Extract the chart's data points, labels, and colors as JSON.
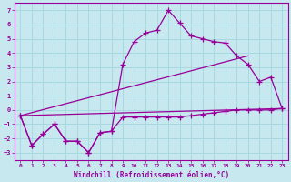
{
  "background_color": "#c6e8ee",
  "grid_color": "#a8d8e0",
  "line_color": "#990099",
  "xlabel": "Windchill (Refroidissement éolien,°C)",
  "xlim": [
    -0.5,
    23.5
  ],
  "ylim": [
    -3.5,
    7.5
  ],
  "yticks": [
    -3,
    -2,
    -1,
    0,
    1,
    2,
    3,
    4,
    5,
    6,
    7
  ],
  "xticks": [
    0,
    1,
    2,
    3,
    4,
    5,
    6,
    7,
    8,
    9,
    10,
    11,
    12,
    13,
    14,
    15,
    16,
    17,
    18,
    19,
    20,
    21,
    22,
    23
  ],
  "curve1_x": [
    0,
    1,
    2,
    3,
    4,
    5,
    6,
    7,
    8,
    9,
    10,
    11,
    12,
    13,
    14,
    15,
    16,
    17,
    18,
    19,
    20,
    21,
    22,
    23
  ],
  "curve1_y": [
    -0.4,
    -2.5,
    -1.7,
    -1.0,
    -2.2,
    -2.2,
    -3.0,
    -1.6,
    -1.5,
    3.2,
    4.8,
    5.4,
    5.6,
    7.0,
    6.1,
    5.2,
    5.0,
    4.8,
    4.7,
    3.8,
    3.2,
    2.0,
    2.3,
    0.1
  ],
  "curve2_x": [
    0,
    1,
    2,
    3,
    4,
    5,
    6,
    7,
    8,
    9,
    10,
    11,
    12,
    13,
    14,
    15,
    16,
    17,
    18,
    19,
    20,
    21,
    22,
    23
  ],
  "curve2_y": [
    -0.4,
    -2.5,
    -1.7,
    -1.0,
    -2.2,
    -2.2,
    -3.0,
    -1.6,
    -1.5,
    -0.5,
    -0.5,
    -0.5,
    -0.5,
    -0.5,
    -0.5,
    -0.4,
    -0.3,
    -0.2,
    -0.1,
    0.0,
    0.0,
    0.0,
    0.0,
    0.1
  ],
  "line1_x": [
    0,
    23
  ],
  "line1_y": [
    -0.4,
    0.1
  ],
  "line2_x": [
    0,
    20
  ],
  "line2_y": [
    -0.4,
    3.8
  ]
}
